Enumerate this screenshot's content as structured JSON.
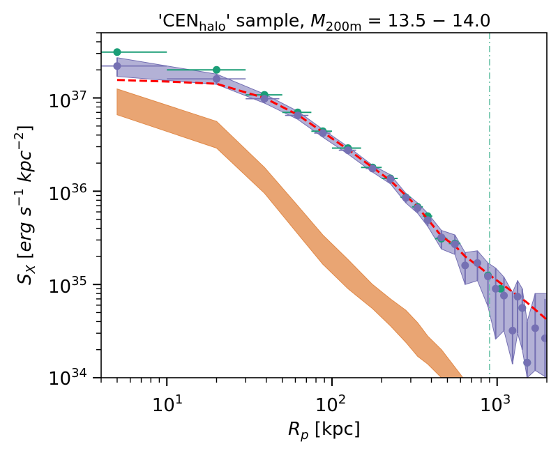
{
  "chart_data": {
    "type": "line",
    "title_prefix": "'CEN",
    "title_sub": "halo",
    "title_mid": "' sample, ",
    "title_M": "M",
    "title_Msub": "200m",
    "title_eq": " = 13.5 − 14.0",
    "xlabel_R": "R",
    "xlabel_sub": "p",
    "xlabel_unit": " [kpc]",
    "ylabel_S": "S",
    "ylabel_sub": "X",
    "ylabel_unit_a": " [",
    "ylabel_unit_b": "erg s",
    "ylabel_exp1": "−1",
    "ylabel_unit_c": " kpc",
    "ylabel_exp2": "−2",
    "ylabel_unit_d": "]",
    "xscale": "log",
    "yscale": "log",
    "xlim": [
      4,
      2000
    ],
    "ylim": [
      1e+34,
      5e+37
    ],
    "x_ticks": [
      {
        "value": 10,
        "base": "10",
        "exp": "1"
      },
      {
        "value": 100,
        "base": "10",
        "exp": "2"
      },
      {
        "value": 1000,
        "base": "10",
        "exp": "3"
      }
    ],
    "y_ticks": [
      {
        "value": 1e+34,
        "base": "10",
        "exp": "34"
      },
      {
        "value": 1e+35,
        "base": "10",
        "exp": "35"
      },
      {
        "value": 1e+36,
        "base": "10",
        "exp": "36"
      },
      {
        "value": 1e+37,
        "base": "10",
        "exp": "37"
      }
    ],
    "vline": {
      "x": 900,
      "color": "#66c2a5",
      "style": "dashdot"
    },
    "colors": {
      "green": "#1b9e77",
      "purple": "#7570b3",
      "purple_fill": "#a6a3cf",
      "orange_fill": "#e8a06c",
      "orange_edge": "#e08a4a",
      "red": "#ff0000"
    },
    "series": [
      {
        "name": "green points",
        "color": "#1b9e77",
        "points": [
          {
            "x": 5,
            "y": 3.1e+37,
            "xlo": 4,
            "xhi": 10
          },
          {
            "x": 20,
            "y": 2e+37,
            "xlo": 10,
            "xhi": 30
          },
          {
            "x": 39,
            "y": 1.08e+37,
            "xlo": 30,
            "xhi": 50
          },
          {
            "x": 62,
            "y": 7e+36,
            "xlo": 50,
            "xhi": 75
          },
          {
            "x": 88,
            "y": 4.4e+36,
            "xlo": 75,
            "xhi": 100
          },
          {
            "x": 125,
            "y": 2.9e+36,
            "xlo": 100,
            "xhi": 150
          },
          {
            "x": 176,
            "y": 1.8e+36,
            "xlo": 150,
            "xhi": 200
          },
          {
            "x": 226,
            "y": 1.37e+36,
            "xlo": 200,
            "xhi": 250
          },
          {
            "x": 280,
            "y": 8.6e+35,
            "xlo": 260,
            "xhi": 300
          },
          {
            "x": 330,
            "y": 6.8e+35,
            "xlo": 305,
            "xhi": 355
          },
          {
            "x": 380,
            "y": 5.4e+35,
            "xlo": 355,
            "xhi": 405
          },
          {
            "x": 460,
            "y": 3.1e+35,
            "xlo": 420,
            "xhi": 500
          },
          {
            "x": 555,
            "y": 2.75e+35,
            "xlo": 510,
            "xhi": 600
          },
          {
            "x": 880,
            "y": 1.25e+35,
            "xlo": 860,
            "xhi": 900
          },
          {
            "x": 1050,
            "y": 9e+34,
            "xlo": 1000,
            "xhi": 1100
          },
          {
            "x": 1420,
            "y": 5.6e+34,
            "xlo": 1400,
            "xhi": 1440
          },
          {
            "x": 1520,
            "y": 1.45e+34,
            "xlo": 1500,
            "xhi": 1540
          }
        ]
      },
      {
        "name": "purple points",
        "color": "#7570b3",
        "points": [
          {
            "x": 5,
            "y": 2.2e+37,
            "xlo": 4,
            "xhi": 10,
            "ylo": 1.7e+37,
            "yhi": 2.7e+37
          },
          {
            "x": 20,
            "y": 1.6e+37,
            "xlo": 10,
            "xhi": 30,
            "ylo": 1.4e+37,
            "yhi": 1.8e+37
          },
          {
            "x": 39,
            "y": 9.8e+36,
            "xlo": 30,
            "xhi": 48,
            "ylo": 8.8e+36,
            "yhi": 1.1e+37
          },
          {
            "x": 62,
            "y": 6.5e+36,
            "xlo": 52,
            "xhi": 72,
            "ylo": 5.9e+36,
            "yhi": 7.2e+36
          },
          {
            "x": 88,
            "y": 4.2e+36,
            "xlo": 78,
            "xhi": 98,
            "ylo": 3.8e+36,
            "yhi": 4.6e+36
          },
          {
            "x": 125,
            "y": 2.75e+36,
            "xlo": 110,
            "xhi": 140,
            "ylo": 2.5e+36,
            "yhi": 3e+36
          },
          {
            "x": 176,
            "y": 1.75e+36,
            "xlo": 160,
            "xhi": 190,
            "ylo": 1.6e+36,
            "yhi": 1.9e+36
          },
          {
            "x": 226,
            "y": 1.35e+36,
            "xlo": 215,
            "xhi": 240,
            "ylo": 1.2e+36,
            "yhi": 1.5e+36
          },
          {
            "x": 280,
            "y": 8.5e+35,
            "xlo": 265,
            "xhi": 295,
            "ylo": 7.5e+35,
            "yhi": 9.5e+35
          },
          {
            "x": 330,
            "y": 6.6e+35,
            "xlo": 310,
            "xhi": 350,
            "ylo": 5.8e+35,
            "yhi": 7.5e+35
          },
          {
            "x": 380,
            "y": 4.9e+35,
            "xlo": 360,
            "xhi": 400,
            "ylo": 4.2e+35,
            "yhi": 5.8e+35
          },
          {
            "x": 460,
            "y": 3.2e+35,
            "xlo": 430,
            "xhi": 490,
            "ylo": 2.4e+35,
            "yhi": 3.8e+35
          },
          {
            "x": 555,
            "y": 2.7e+35,
            "xlo": 520,
            "xhi": 590,
            "ylo": 2.1e+35,
            "yhi": 3.4e+35
          },
          {
            "x": 640,
            "y": 1.6e+35,
            "xlo": 610,
            "xhi": 670,
            "ylo": 1e+35,
            "yhi": 2.2e+35
          },
          {
            "x": 760,
            "y": 1.7e+35,
            "xlo": 730,
            "xhi": 790,
            "ylo": 1.1e+35,
            "yhi": 2.3e+35
          },
          {
            "x": 880,
            "y": 1.22e+35,
            "xlo": 850,
            "xhi": 910,
            "ylo": 5.8e+34,
            "yhi": 1.7e+35
          },
          {
            "x": 980,
            "y": 9e+34,
            "xlo": 950,
            "xhi": 1010,
            "ylo": 2.6e+34,
            "yhi": 1.5e+35
          },
          {
            "x": 1100,
            "y": 7.6e+34,
            "xlo": 1060,
            "xhi": 1140,
            "ylo": 3.2e+34,
            "yhi": 1.2e+35
          },
          {
            "x": 1240,
            "y": 3.2e+34,
            "xlo": 1200,
            "xhi": 1280,
            "ylo": 1.4e+34,
            "yhi": 8.2e+34
          },
          {
            "x": 1330,
            "y": 7.4e+34,
            "xlo": 1290,
            "xhi": 1370,
            "ylo": 3e+34,
            "yhi": 1.1e+35
          },
          {
            "x": 1420,
            "y": 5.6e+34,
            "xlo": 1380,
            "xhi": 1460,
            "ylo": 2e+34,
            "yhi": 9e+34
          },
          {
            "x": 1520,
            "y": 1.45e+34,
            "xlo": 1480,
            "xhi": 1560,
            "ylo": 1e+34,
            "yhi": 4e+34
          },
          {
            "x": 1700,
            "y": 3.4e+34,
            "xlo": 1620,
            "xhi": 1780,
            "ylo": 1.2e+34,
            "yhi": 8e+34
          },
          {
            "x": 1950,
            "y": 2.65e+34,
            "xlo": 1880,
            "xhi": 2000,
            "ylo": 1e+34,
            "yhi": 7e+34
          }
        ]
      },
      {
        "name": "purple band",
        "type": "band",
        "color": "#a6a3cf",
        "x": [
          5,
          20,
          39,
          62,
          88,
          125,
          176,
          226,
          280,
          330,
          380,
          460,
          555,
          640,
          760,
          880,
          980,
          1100,
          1240,
          1330,
          1420,
          1520,
          1700,
          2000
        ],
        "lower": [
          1.7e+37,
          1.4e+37,
          8.8e+36,
          5.9e+36,
          3.8e+36,
          2.5e+36,
          1.6e+36,
          1.2e+36,
          7.5e+35,
          5.8e+35,
          4.2e+35,
          2.4e+35,
          2.1e+35,
          1e+35,
          1.1e+35,
          5.8e+34,
          2.6e+34,
          3.2e+34,
          1.4e+34,
          3e+34,
          2e+34,
          1e+34,
          1.2e+34,
          1e+34
        ],
        "upper": [
          2.7e+37,
          1.8e+37,
          1.1e+37,
          7.2e+36,
          4.6e+36,
          3e+36,
          1.9e+36,
          1.5e+36,
          9.5e+35,
          7.5e+35,
          5.8e+35,
          3.8e+35,
          3.4e+35,
          2.2e+35,
          2.3e+35,
          1.7e+35,
          1.5e+35,
          1.2e+35,
          8.2e+34,
          1.1e+35,
          9e+34,
          4e+34,
          8e+34,
          8e+34
        ]
      },
      {
        "name": "orange band",
        "type": "band",
        "color": "#e8a06c",
        "x": [
          5,
          20,
          39,
          62,
          88,
          125,
          176,
          226,
          280,
          330,
          380,
          460,
          555,
          650
        ],
        "lower": [
          6.6e+36,
          2.9e+36,
          9.5e+35,
          3.5e+35,
          1.65e+35,
          9e+34,
          5.5e+34,
          3.6e+34,
          2.4e+34,
          1.7e+34,
          1.4e+34,
          1e+34,
          7e+33,
          5e+33
        ],
        "upper": [
          1.25e+37,
          5.6e+36,
          1.8e+36,
          7e+35,
          3.4e+35,
          1.85e+35,
          1e+35,
          7e+34,
          5.3e+34,
          3.9e+34,
          2.8e+34,
          2e+34,
          1.3e+34,
          9e+33
        ]
      },
      {
        "name": "red model",
        "type": "dashed-line",
        "color": "#ff0000",
        "x": [
          5,
          10,
          20,
          39,
          62,
          88,
          125,
          176,
          226,
          280,
          330,
          380,
          460,
          555,
          640,
          760,
          880,
          1000,
          1200,
          1500,
          2000
        ],
        "y": [
          1.56e+37,
          1.5e+37,
          1.42e+37,
          1e+37,
          6.6e+36,
          4.3e+36,
          2.8e+36,
          1.8e+36,
          1.3e+36,
          9e+35,
          6.8e+35,
          5e+35,
          3.3e+35,
          2.6e+35,
          2e+35,
          1.6e+35,
          1.3e+35,
          1.1e+35,
          8.7e+34,
          6.5e+34,
          4.2e+34
        ]
      }
    ]
  }
}
